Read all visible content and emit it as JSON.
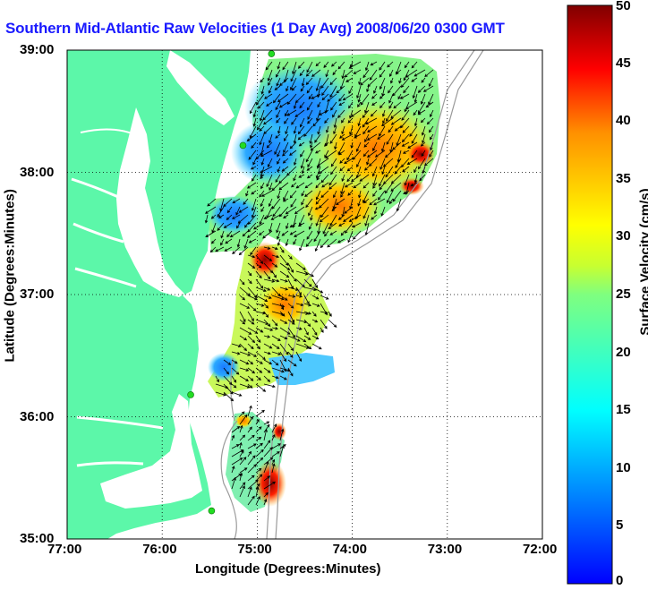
{
  "title": "Southern Mid-Atlantic Raw Velocities (1 Day Avg) 2008/06/20 0300 GMT",
  "x_axis": {
    "label": "Longitude (Degrees:Minutes)",
    "ticks": [
      "77:00",
      "76:00",
      "75:00",
      "74:00",
      "73:00",
      "72:00"
    ]
  },
  "y_axis": {
    "label": "Latitude (Degrees:Minutes)",
    "ticks": [
      "39:00",
      "38:00",
      "37:00",
      "36:00",
      "35:00"
    ]
  },
  "colorbar": {
    "label": "Surface Velocity (cm/s)",
    "min": 0,
    "max": 50,
    "ticks": [
      "50",
      "45",
      "40",
      "35",
      "30",
      "25",
      "20",
      "15",
      "10",
      "5",
      "0"
    ],
    "colormap": "jet"
  },
  "colors": {
    "land": "#5cf7a9",
    "grid": "#000000",
    "bathymetry": "#999999",
    "station": "#22dd22",
    "title": "#1a1aff"
  },
  "map": {
    "lon_range": [
      -77,
      -72
    ],
    "lat_range": [
      35,
      39
    ],
    "grid": "dotted",
    "stations": [
      {
        "lon": -74.85,
        "lat": 38.97
      },
      {
        "lon": -75.15,
        "lat": 38.22
      },
      {
        "lon": -75.7,
        "lat": 36.18
      },
      {
        "lon": -75.48,
        "lat": 35.23
      }
    ]
  }
}
